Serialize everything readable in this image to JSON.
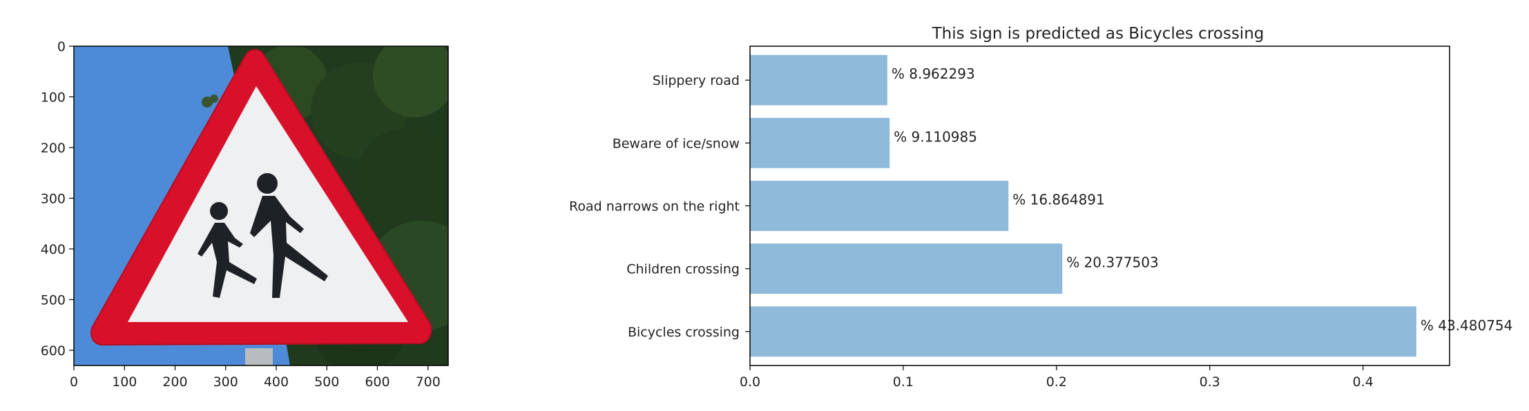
{
  "chart_data": [
    {
      "type": "image",
      "x_ticks": [
        0,
        100,
        200,
        300,
        400,
        500,
        600,
        700
      ],
      "y_ticks": [
        0,
        100,
        200,
        300,
        400,
        500,
        600
      ],
      "xlim": [
        0,
        740
      ],
      "ylim": [
        630,
        0
      ],
      "grid": false
    },
    {
      "type": "bar",
      "orientation": "horizontal",
      "title": "This sign is predicted as Bicycles crossing",
      "categories": [
        "Bicycles crossing",
        "Children crossing",
        "Road narrows on the right",
        "Beware of ice/snow",
        "Slippery road"
      ],
      "values": [
        0.43480754,
        0.20377503,
        0.16864891,
        0.09110985,
        0.08962293
      ],
      "labels": [
        "% 43.480754",
        "% 20.377503",
        "% 16.864891",
        "% 9.110985",
        "% 8.962293"
      ],
      "x_ticks": [
        0.0,
        0.1,
        0.2,
        0.3,
        0.4
      ],
      "x_tick_labels": [
        "0.0",
        "0.1",
        "0.2",
        "0.3",
        "0.4"
      ],
      "xlim": [
        0,
        0.4565
      ],
      "bar_color": "#8fbad9",
      "grid": false
    }
  ],
  "colors": {
    "sky": "#4a89d6",
    "sign_border": "#d8102a",
    "sign_fill": "#eef0f1",
    "figures": "#1e2226",
    "trees": "#1f3a1c"
  },
  "icons": [
    "children-crossing-sign-icon"
  ]
}
